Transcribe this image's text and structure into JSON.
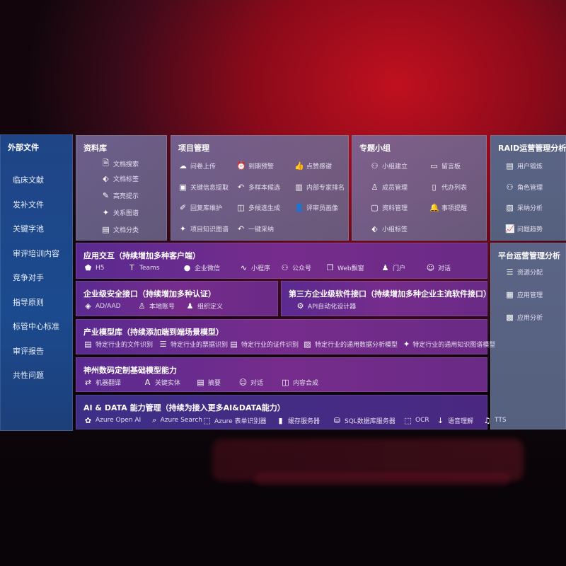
{
  "external": {
    "title": "外部文件",
    "items": [
      "临床文献",
      "发补文件",
      "关键字池",
      "审评培训内容",
      "竞争对手",
      "指导原则",
      "标管中心标准",
      "审评报告",
      "共性问题"
    ]
  },
  "library": {
    "title": "资料库",
    "items": [
      {
        "icon": "doc-search-icon",
        "label": "文档搜索"
      },
      {
        "icon": "tag-icon",
        "label": "文档标签"
      },
      {
        "icon": "pen-icon",
        "label": "高亮提示"
      },
      {
        "icon": "graph-icon",
        "label": "关系图谱"
      },
      {
        "icon": "doc-class-icon",
        "label": "文档分类"
      }
    ]
  },
  "project": {
    "title": "项目管理",
    "items": [
      {
        "icon": "cloud-upload-icon",
        "label": "问卷上传"
      },
      {
        "icon": "alarm-icon",
        "label": "到期预警"
      },
      {
        "icon": "thumbs-up-icon",
        "label": "点赞感谢"
      },
      {
        "icon": "extract-icon",
        "label": "关键信息提取"
      },
      {
        "icon": "reply-icon",
        "label": "多样本候选"
      },
      {
        "icon": "rank-icon",
        "label": "内部专家排名"
      },
      {
        "icon": "edit-icon",
        "label": "回复库维护"
      },
      {
        "icon": "puzzle-icon",
        "label": "多候选生成"
      },
      {
        "icon": "user-icon",
        "label": "评审员画像"
      },
      {
        "icon": "graph-icon",
        "label": "项目知识图谱"
      },
      {
        "icon": "reply-icon",
        "label": "一键采纳"
      }
    ]
  },
  "group": {
    "title": "专题小组",
    "items": [
      {
        "icon": "group-icon",
        "label": "小组建立"
      },
      {
        "icon": "bbs-icon",
        "label": "留言板"
      },
      {
        "icon": "member-icon",
        "label": "成员管理"
      },
      {
        "icon": "clipboard-icon",
        "label": "代办列表"
      },
      {
        "icon": "folder-icon",
        "label": "资料管理"
      },
      {
        "icon": "bell-icon",
        "label": "事项提醒"
      },
      {
        "icon": "tag-icon",
        "label": "小组标签"
      }
    ]
  },
  "raid": {
    "title": "RAID运营管理分析",
    "items": [
      {
        "icon": "id-card-icon",
        "label": "用户锻炼"
      },
      {
        "icon": "users-icon",
        "label": "角色管理"
      },
      {
        "icon": "qa-icon",
        "label": "采纳分析"
      },
      {
        "icon": "trend-icon",
        "label": "问题趋势"
      }
    ]
  },
  "platform": {
    "title": "平台运营管理分析",
    "items": [
      {
        "icon": "list-icon",
        "label": "资源分配"
      },
      {
        "icon": "apps-icon",
        "label": "应用管理"
      },
      {
        "icon": "chart-icon",
        "label": "应用分析"
      }
    ]
  },
  "interaction": {
    "title": "应用交互（持续增加多种客户端）",
    "items": [
      {
        "icon": "html5-icon",
        "label": "H5"
      },
      {
        "icon": "teams-icon",
        "label": "Teams"
      },
      {
        "icon": "wecom-icon",
        "label": "企业微信"
      },
      {
        "icon": "miniapp-icon",
        "label": "小程序"
      },
      {
        "icon": "official-account-icon",
        "label": "公众号"
      },
      {
        "icon": "window-icon",
        "label": "Web飘窗"
      },
      {
        "icon": "portal-icon",
        "label": "门户"
      },
      {
        "icon": "chat-icon",
        "label": "对话"
      }
    ]
  },
  "security": {
    "title": "企业级安全接口（持续增加多种认证）",
    "items": [
      {
        "icon": "ad-icon",
        "label": "AD/AAD"
      },
      {
        "icon": "account-icon",
        "label": "本地账号"
      },
      {
        "icon": "org-icon",
        "label": "组织定义"
      }
    ]
  },
  "thirdparty": {
    "title": "第三方企业级软件接口（持续增加多种企业主流软件接口）",
    "items": [
      {
        "icon": "gear-icon",
        "label": "API自动化设计器"
      }
    ]
  },
  "industry": {
    "title": "产业模型库（持续添加端到端场景模型）",
    "items": [
      {
        "icon": "file-icon",
        "label": "特定行业的文件识别"
      },
      {
        "icon": "receipt-icon",
        "label": "特定行业的票据识别"
      },
      {
        "icon": "id-card-icon",
        "label": "特定行业的证件识别"
      },
      {
        "icon": "data-model-icon",
        "label": "特定行业的通用数据分析模型"
      },
      {
        "icon": "graph-icon",
        "label": "特定行业的通用知识图谱模型"
      }
    ]
  },
  "base": {
    "title": "神州数码定制基础模型能力",
    "items": [
      {
        "icon": "translate-icon",
        "label": "机器翻译"
      },
      {
        "icon": "entity-icon",
        "label": "关键实体"
      },
      {
        "icon": "summary-icon",
        "label": "摘要"
      },
      {
        "icon": "chat-icon",
        "label": "对话"
      },
      {
        "icon": "puzzle-icon",
        "label": "内容合成"
      }
    ]
  },
  "aidata": {
    "title": "AI & DATA 能力管理（持续为接入更多AI&DATA能力）",
    "items": [
      {
        "icon": "openai-icon",
        "label": "Azure Open AI"
      },
      {
        "icon": "search-icon",
        "label": "Azure Search"
      },
      {
        "icon": "form-icon",
        "label": "Azure 表单识别器"
      },
      {
        "icon": "cache-icon",
        "label": "缓存服务器"
      },
      {
        "icon": "sql-icon",
        "label": "SQL数据库服务器"
      },
      {
        "icon": "ocr-icon",
        "label": "OCR"
      },
      {
        "icon": "speech-icon",
        "label": "语音理解"
      },
      {
        "icon": "tts-icon",
        "label": "TTS"
      }
    ]
  }
}
